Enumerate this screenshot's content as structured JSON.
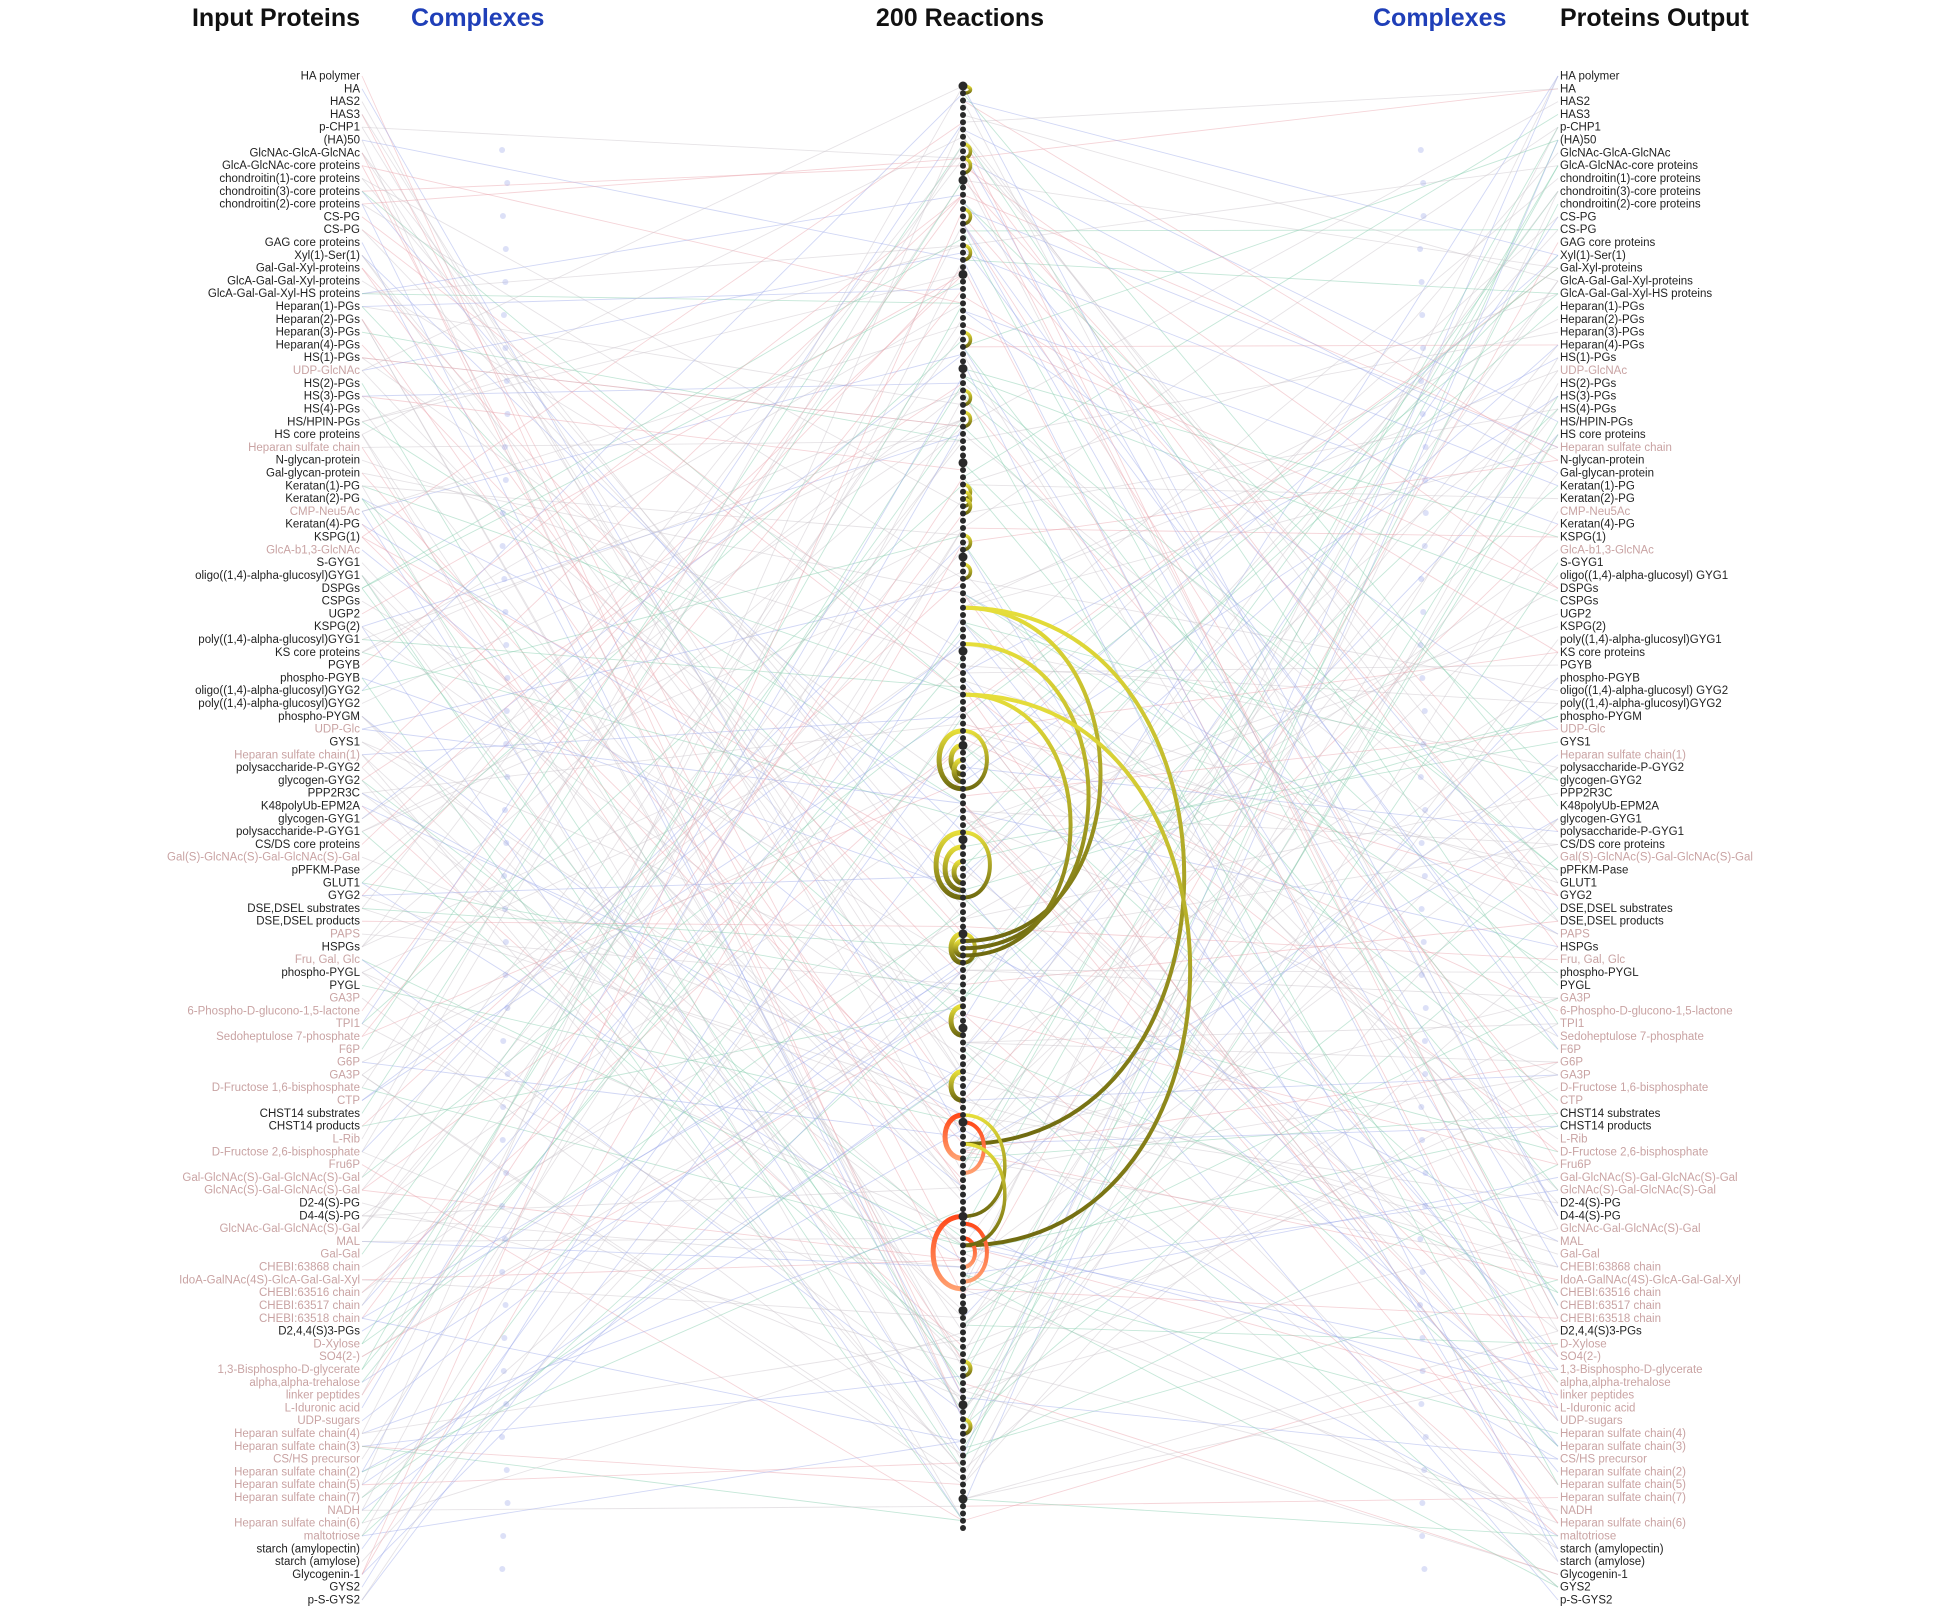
{
  "headers": {
    "input_proteins": "Input Proteins",
    "complexes_left": "Complexes",
    "reactions": "200 Reactions",
    "complexes_right": "Complexes",
    "proteins_output": "Proteins Output"
  },
  "colors": {
    "header_black": "#111111",
    "header_blue": "#1f3fb8",
    "protein_label_dark": "#222222",
    "small_molecule_label": "#c9a3a3",
    "edge_green": "#7fc9a8",
    "edge_pink": "#e8a0a8",
    "edge_blue": "#9aa6e8",
    "edge_gray": "#c8c0c8",
    "reaction_node": "#2a2a2a",
    "arc_yellow": "#e6de3a",
    "arc_olive": "#6f6a10",
    "arc_red": "#ff4a1a",
    "arc_orange": "#ffa070"
  },
  "input_proteins": [
    {
      "label": "HA polymer",
      "kind": "protein"
    },
    {
      "label": "HA",
      "kind": "protein"
    },
    {
      "label": "HAS2",
      "kind": "protein"
    },
    {
      "label": "HAS3",
      "kind": "protein"
    },
    {
      "label": "p-CHP1",
      "kind": "protein"
    },
    {
      "label": "(HA)50",
      "kind": "protein"
    },
    {
      "label": "GlcNAc-GlcA-GlcNAc",
      "kind": "protein"
    },
    {
      "label": "GlcA-GlcNAc-core proteins",
      "kind": "protein"
    },
    {
      "label": "chondroitin(1)-core proteins",
      "kind": "protein"
    },
    {
      "label": "chondroitin(3)-core proteins",
      "kind": "protein"
    },
    {
      "label": "chondroitin(2)-core proteins",
      "kind": "protein"
    },
    {
      "label": "CS-PG",
      "kind": "protein"
    },
    {
      "label": "CS-PG",
      "kind": "protein"
    },
    {
      "label": "GAG core proteins",
      "kind": "protein"
    },
    {
      "label": "Xyl(1)-Ser(1)",
      "kind": "protein"
    },
    {
      "label": "Gal-Gal-Xyl-proteins",
      "kind": "protein"
    },
    {
      "label": "GlcA-Gal-Gal-Xyl-proteins",
      "kind": "protein"
    },
    {
      "label": "GlcA-Gal-Gal-Xyl-HS proteins",
      "kind": "protein"
    },
    {
      "label": "Heparan(1)-PGs",
      "kind": "protein"
    },
    {
      "label": "Heparan(2)-PGs",
      "kind": "protein"
    },
    {
      "label": "Heparan(3)-PGs",
      "kind": "protein"
    },
    {
      "label": "Heparan(4)-PGs",
      "kind": "protein"
    },
    {
      "label": "HS(1)-PGs",
      "kind": "protein"
    },
    {
      "label": "UDP-GlcNAc",
      "kind": "small"
    },
    {
      "label": "HS(2)-PGs",
      "kind": "protein"
    },
    {
      "label": "HS(3)-PGs",
      "kind": "protein"
    },
    {
      "label": "HS(4)-PGs",
      "kind": "protein"
    },
    {
      "label": "HS/HPIN-PGs",
      "kind": "protein"
    },
    {
      "label": "HS core proteins",
      "kind": "protein"
    },
    {
      "label": "Heparan sulfate chain",
      "kind": "small"
    },
    {
      "label": "N-glycan-protein",
      "kind": "protein"
    },
    {
      "label": "Gal-glycan-protein",
      "kind": "protein"
    },
    {
      "label": "Keratan(1)-PG",
      "kind": "protein"
    },
    {
      "label": "Keratan(2)-PG",
      "kind": "protein"
    },
    {
      "label": "CMP-Neu5Ac",
      "kind": "small"
    },
    {
      "label": "Keratan(4)-PG",
      "kind": "protein"
    },
    {
      "label": "KSPG(1)",
      "kind": "protein"
    },
    {
      "label": "GlcA-b1,3-GlcNAc",
      "kind": "small"
    },
    {
      "label": "S-GYG1",
      "kind": "protein"
    },
    {
      "label": "oligo((1,4)-alpha-glucosyl)GYG1",
      "kind": "protein"
    },
    {
      "label": "DSPGs",
      "kind": "protein"
    },
    {
      "label": "CSPGs",
      "kind": "protein"
    },
    {
      "label": "UGP2",
      "kind": "protein"
    },
    {
      "label": "KSPG(2)",
      "kind": "protein"
    },
    {
      "label": "poly((1,4)-alpha-glucosyl)GYG1",
      "kind": "protein"
    },
    {
      "label": "KS core proteins",
      "kind": "protein"
    },
    {
      "label": "PGYB",
      "kind": "protein"
    },
    {
      "label": "phospho-PGYB",
      "kind": "protein"
    },
    {
      "label": "oligo((1,4)-alpha-glucosyl)GYG2",
      "kind": "protein"
    },
    {
      "label": "poly((1,4)-alpha-glucosyl)GYG2",
      "kind": "protein"
    },
    {
      "label": "phospho-PYGM",
      "kind": "protein"
    },
    {
      "label": "UDP-Glc",
      "kind": "small"
    },
    {
      "label": "GYS1",
      "kind": "protein"
    },
    {
      "label": "Heparan sulfate chain(1)",
      "kind": "small"
    },
    {
      "label": "polysaccharide-P-GYG2",
      "kind": "protein"
    },
    {
      "label": "glycogen-GYG2",
      "kind": "protein"
    },
    {
      "label": "PPP2R3C",
      "kind": "protein"
    },
    {
      "label": "K48polyUb-EPM2A",
      "kind": "protein"
    },
    {
      "label": "glycogen-GYG1",
      "kind": "protein"
    },
    {
      "label": "polysaccharide-P-GYG1",
      "kind": "protein"
    },
    {
      "label": "CS/DS core proteins",
      "kind": "protein"
    },
    {
      "label": "Gal(S)-GlcNAc(S)-Gal-GlcNAc(S)-Gal",
      "kind": "small"
    },
    {
      "label": "pPFKM-Pase",
      "kind": "protein"
    },
    {
      "label": "GLUT1",
      "kind": "protein"
    },
    {
      "label": "GYG2",
      "kind": "protein"
    },
    {
      "label": "DSE,DSEL substrates",
      "kind": "protein"
    },
    {
      "label": "DSE,DSEL products",
      "kind": "protein"
    },
    {
      "label": "PAPS",
      "kind": "small"
    },
    {
      "label": "HSPGs",
      "kind": "protein"
    },
    {
      "label": "Fru, Gal, Glc",
      "kind": "small"
    },
    {
      "label": "phospho-PYGL",
      "kind": "protein"
    },
    {
      "label": "PYGL",
      "kind": "protein"
    },
    {
      "label": "GA3P",
      "kind": "small"
    },
    {
      "label": "6-Phospho-D-glucono-1,5-lactone",
      "kind": "small"
    },
    {
      "label": "TPI1",
      "kind": "small"
    },
    {
      "label": "Sedoheptulose 7-phosphate",
      "kind": "small"
    },
    {
      "label": "F6P",
      "kind": "small"
    },
    {
      "label": "G6P",
      "kind": "small"
    },
    {
      "label": "GA3P",
      "kind": "small"
    },
    {
      "label": "D-Fructose 1,6-bisphosphate",
      "kind": "small"
    },
    {
      "label": "CTP",
      "kind": "small"
    },
    {
      "label": "CHST14 substrates",
      "kind": "protein"
    },
    {
      "label": "CHST14 products",
      "kind": "protein"
    },
    {
      "label": "L-Rib",
      "kind": "small"
    },
    {
      "label": "D-Fructose 2,6-bisphosphate",
      "kind": "small"
    },
    {
      "label": "Fru6P",
      "kind": "small"
    },
    {
      "label": "Gal-GlcNAc(S)-Gal-GlcNAc(S)-Gal",
      "kind": "small"
    },
    {
      "label": "GlcNAc(S)-Gal-GlcNAc(S)-Gal",
      "kind": "small"
    },
    {
      "label": "D2-4(S)-PG",
      "kind": "protein"
    },
    {
      "label": "D4-4(S)-PG",
      "kind": "protein"
    },
    {
      "label": "GlcNAc-Gal-GlcNAc(S)-Gal",
      "kind": "small"
    },
    {
      "label": "MAL",
      "kind": "small"
    },
    {
      "label": "Gal-Gal",
      "kind": "small"
    },
    {
      "label": "CHEBI:63868 chain",
      "kind": "small"
    },
    {
      "label": "IdoA-GalNAc(4S)-GlcA-Gal-Gal-Xyl",
      "kind": "small"
    },
    {
      "label": "CHEBI:63516 chain",
      "kind": "small"
    },
    {
      "label": "CHEBI:63517 chain",
      "kind": "small"
    },
    {
      "label": "CHEBI:63518 chain",
      "kind": "small"
    },
    {
      "label": "D2,4,4(S)3-PGs",
      "kind": "protein"
    },
    {
      "label": "D-Xylose",
      "kind": "small"
    },
    {
      "label": "SO4(2-)",
      "kind": "small"
    },
    {
      "label": "1,3-Bisphospho-D-glycerate",
      "kind": "small"
    },
    {
      "label": "alpha,alpha-trehalose",
      "kind": "small"
    },
    {
      "label": "linker peptides",
      "kind": "small"
    },
    {
      "label": "L-Iduronic acid",
      "kind": "small"
    },
    {
      "label": "UDP-sugars",
      "kind": "small"
    },
    {
      "label": "Heparan sulfate chain(4)",
      "kind": "small"
    },
    {
      "label": "Heparan sulfate chain(3)",
      "kind": "small"
    },
    {
      "label": "CS/HS precursor",
      "kind": "small"
    },
    {
      "label": "Heparan sulfate chain(2)",
      "kind": "small"
    },
    {
      "label": "Heparan sulfate chain(5)",
      "kind": "small"
    },
    {
      "label": "Heparan sulfate chain(7)",
      "kind": "small"
    },
    {
      "label": "NADH",
      "kind": "small"
    },
    {
      "label": "Heparan sulfate chain(6)",
      "kind": "small"
    },
    {
      "label": "maltotriose",
      "kind": "small"
    },
    {
      "label": "starch (amylopectin)",
      "kind": "protein"
    },
    {
      "label": "starch (amylose)",
      "kind": "protein"
    },
    {
      "label": "Glycogenin-1",
      "kind": "protein"
    },
    {
      "label": "GYS2",
      "kind": "protein"
    },
    {
      "label": "p-S-GYS2",
      "kind": "protein"
    }
  ],
  "output_proteins": [
    {
      "label": "HA polymer",
      "kind": "protein"
    },
    {
      "label": "HA",
      "kind": "protein"
    },
    {
      "label": "HAS2",
      "kind": "protein"
    },
    {
      "label": "HAS3",
      "kind": "protein"
    },
    {
      "label": "p-CHP1",
      "kind": "protein"
    },
    {
      "label": "(HA)50",
      "kind": "protein"
    },
    {
      "label": "GlcNAc-GlcA-GlcNAc",
      "kind": "protein"
    },
    {
      "label": "GlcA-GlcNAc-core proteins",
      "kind": "protein"
    },
    {
      "label": "chondroitin(1)-core proteins",
      "kind": "protein"
    },
    {
      "label": "chondroitin(3)-core proteins",
      "kind": "protein"
    },
    {
      "label": "chondroitin(2)-core proteins",
      "kind": "protein"
    },
    {
      "label": "CS-PG",
      "kind": "protein"
    },
    {
      "label": "CS-PG",
      "kind": "protein"
    },
    {
      "label": "GAG core proteins",
      "kind": "protein"
    },
    {
      "label": "Xyl(1)-Ser(1)",
      "kind": "protein"
    },
    {
      "label": "Gal-Xyl-proteins",
      "kind": "protein"
    },
    {
      "label": "GlcA-Gal-Gal-Xyl-proteins",
      "kind": "protein"
    },
    {
      "label": "GlcA-Gal-Gal-Xyl-HS proteins",
      "kind": "protein"
    },
    {
      "label": "Heparan(1)-PGs",
      "kind": "protein"
    },
    {
      "label": "Heparan(2)-PGs",
      "kind": "protein"
    },
    {
      "label": "Heparan(3)-PGs",
      "kind": "protein"
    },
    {
      "label": "Heparan(4)-PGs",
      "kind": "protein"
    },
    {
      "label": "HS(1)-PGs",
      "kind": "protein"
    },
    {
      "label": "UDP-GlcNAc",
      "kind": "small"
    },
    {
      "label": "HS(2)-PGs",
      "kind": "protein"
    },
    {
      "label": "HS(3)-PGs",
      "kind": "protein"
    },
    {
      "label": "HS(4)-PGs",
      "kind": "protein"
    },
    {
      "label": "HS/HPIN-PGs",
      "kind": "protein"
    },
    {
      "label": "HS core proteins",
      "kind": "protein"
    },
    {
      "label": "Heparan sulfate chain",
      "kind": "small"
    },
    {
      "label": "N-glycan-protein",
      "kind": "protein"
    },
    {
      "label": "Gal-glycan-protein",
      "kind": "protein"
    },
    {
      "label": "Keratan(1)-PG",
      "kind": "protein"
    },
    {
      "label": "Keratan(2)-PG",
      "kind": "protein"
    },
    {
      "label": "CMP-Neu5Ac",
      "kind": "small"
    },
    {
      "label": "Keratan(4)-PG",
      "kind": "protein"
    },
    {
      "label": "KSPG(1)",
      "kind": "protein"
    },
    {
      "label": "GlcA-b1,3-GlcNAc",
      "kind": "small"
    },
    {
      "label": "S-GYG1",
      "kind": "protein"
    },
    {
      "label": "oligo((1,4)-alpha-glucosyl) GYG1",
      "kind": "protein"
    },
    {
      "label": "DSPGs",
      "kind": "protein"
    },
    {
      "label": "CSPGs",
      "kind": "protein"
    },
    {
      "label": "UGP2",
      "kind": "protein"
    },
    {
      "label": "KSPG(2)",
      "kind": "protein"
    },
    {
      "label": "poly((1,4)-alpha-glucosyl)GYG1",
      "kind": "protein"
    },
    {
      "label": "KS core proteins",
      "kind": "protein"
    },
    {
      "label": "PGYB",
      "kind": "protein"
    },
    {
      "label": "phospho-PGYB",
      "kind": "protein"
    },
    {
      "label": "oligo((1,4)-alpha-glucosyl) GYG2",
      "kind": "protein"
    },
    {
      "label": "poly((1,4)-alpha-glucosyl)GYG2",
      "kind": "protein"
    },
    {
      "label": "phospho-PYGM",
      "kind": "protein"
    },
    {
      "label": "UDP-Glc",
      "kind": "small"
    },
    {
      "label": "GYS1",
      "kind": "protein"
    },
    {
      "label": "Heparan sulfate chain(1)",
      "kind": "small"
    },
    {
      "label": "polysaccharide-P-GYG2",
      "kind": "protein"
    },
    {
      "label": "glycogen-GYG2",
      "kind": "protein"
    },
    {
      "label": "PPP2R3C",
      "kind": "protein"
    },
    {
      "label": "K48polyUb-EPM2A",
      "kind": "protein"
    },
    {
      "label": "glycogen-GYG1",
      "kind": "protein"
    },
    {
      "label": "polysaccharide-P-GYG1",
      "kind": "protein"
    },
    {
      "label": "CS/DS core proteins",
      "kind": "protein"
    },
    {
      "label": "Gal(S)-GlcNAc(S)-Gal-GlcNAc(S)-Gal",
      "kind": "small"
    },
    {
      "label": "pPFKM-Pase",
      "kind": "protein"
    },
    {
      "label": "GLUT1",
      "kind": "protein"
    },
    {
      "label": "GYG2",
      "kind": "protein"
    },
    {
      "label": "DSE,DSEL substrates",
      "kind": "protein"
    },
    {
      "label": "DSE,DSEL products",
      "kind": "protein"
    },
    {
      "label": "PAPS",
      "kind": "small"
    },
    {
      "label": "HSPGs",
      "kind": "protein"
    },
    {
      "label": "Fru, Gal, Glc",
      "kind": "small"
    },
    {
      "label": "phospho-PYGL",
      "kind": "protein"
    },
    {
      "label": "PYGL",
      "kind": "protein"
    },
    {
      "label": "GA3P",
      "kind": "small"
    },
    {
      "label": "6-Phospho-D-glucono-1,5-lactone",
      "kind": "small"
    },
    {
      "label": "TPI1",
      "kind": "small"
    },
    {
      "label": "Sedoheptulose 7-phosphate",
      "kind": "small"
    },
    {
      "label": "F6P",
      "kind": "small"
    },
    {
      "label": "G6P",
      "kind": "small"
    },
    {
      "label": "GA3P",
      "kind": "small"
    },
    {
      "label": "D-Fructose 1,6-bisphosphate",
      "kind": "small"
    },
    {
      "label": "CTP",
      "kind": "small"
    },
    {
      "label": "CHST14 substrates",
      "kind": "protein"
    },
    {
      "label": "CHST14 products",
      "kind": "protein"
    },
    {
      "label": "L-Rib",
      "kind": "small"
    },
    {
      "label": "D-Fructose 2,6-bisphosphate",
      "kind": "small"
    },
    {
      "label": "Fru6P",
      "kind": "small"
    },
    {
      "label": "Gal-GlcNAc(S)-Gal-GlcNAc(S)-Gal",
      "kind": "small"
    },
    {
      "label": "GlcNAc(S)-Gal-GlcNAc(S)-Gal",
      "kind": "small"
    },
    {
      "label": "D2-4(S)-PG",
      "kind": "protein"
    },
    {
      "label": "D4-4(S)-PG",
      "kind": "protein"
    },
    {
      "label": "GlcNAc-Gal-GlcNAc(S)-Gal",
      "kind": "small"
    },
    {
      "label": "MAL",
      "kind": "small"
    },
    {
      "label": "Gal-Gal",
      "kind": "small"
    },
    {
      "label": "CHEBI:63868 chain",
      "kind": "small"
    },
    {
      "label": "IdoA-GalNAc(4S)-GlcA-Gal-Gal-Xyl",
      "kind": "small"
    },
    {
      "label": "CHEBI:63516 chain",
      "kind": "small"
    },
    {
      "label": "CHEBI:63517 chain",
      "kind": "small"
    },
    {
      "label": "CHEBI:63518 chain",
      "kind": "small"
    },
    {
      "label": "D2,4,4(S)3-PGs",
      "kind": "protein"
    },
    {
      "label": "D-Xylose",
      "kind": "small"
    },
    {
      "label": "SO4(2-)",
      "kind": "small"
    },
    {
      "label": "1,3-Bisphospho-D-glycerate",
      "kind": "small"
    },
    {
      "label": "alpha,alpha-trehalose",
      "kind": "small"
    },
    {
      "label": "linker peptides",
      "kind": "small"
    },
    {
      "label": "L-Iduronic acid",
      "kind": "small"
    },
    {
      "label": "UDP-sugars",
      "kind": "small"
    },
    {
      "label": "Heparan sulfate chain(4)",
      "kind": "small"
    },
    {
      "label": "Heparan sulfate chain(3)",
      "kind": "small"
    },
    {
      "label": "CS/HS precursor",
      "kind": "small"
    },
    {
      "label": "Heparan sulfate chain(2)",
      "kind": "small"
    },
    {
      "label": "Heparan sulfate chain(5)",
      "kind": "small"
    },
    {
      "label": "Heparan sulfate chain(7)",
      "kind": "small"
    },
    {
      "label": "NADH",
      "kind": "small"
    },
    {
      "label": "Heparan sulfate chain(6)",
      "kind": "small"
    },
    {
      "label": "maltotriose",
      "kind": "small"
    },
    {
      "label": "starch (amylopectin)",
      "kind": "protein"
    },
    {
      "label": "starch (amylose)",
      "kind": "protein"
    },
    {
      "label": "Glycogenin-1",
      "kind": "protein"
    },
    {
      "label": "GYS2",
      "kind": "protein"
    },
    {
      "label": "p-S-GYS2",
      "kind": "protein"
    }
  ],
  "reaction_count": 200
}
